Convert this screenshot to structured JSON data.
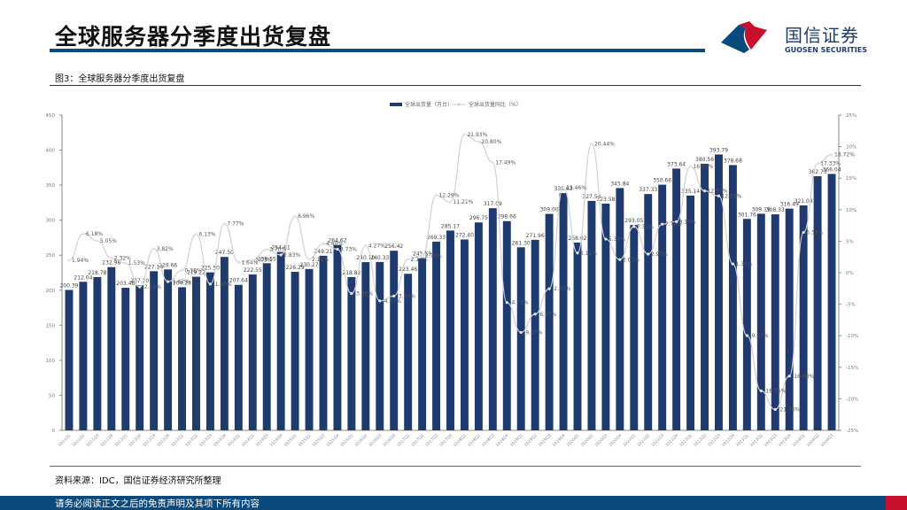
{
  "header": {
    "title": "全球服务器分季度出货复盘",
    "brand_cn": "国信证券",
    "brand_en": "GUOSEN SECURITIES"
  },
  "figure": {
    "caption": "图3：全球服务器分季度出货复盘",
    "source": "资料来源：IDC，国信证券经济研究所整理"
  },
  "footer": {
    "disclaimer": "请务必阅读正文之后的免责声明及其项下所有内容"
  },
  "colors": {
    "bar": "#1f3a6e",
    "line": "#d0d0d0",
    "brand_blue": "#0b4a7d",
    "brand_red": "#c8102e"
  },
  "chart_data": {
    "type": "bar+line",
    "title": "",
    "legend": [
      "全球出货量（万台）",
      "全球出货量同比（%）"
    ],
    "legend_position": "top",
    "grid": false,
    "y_left": {
      "label": "",
      "ticks": [
        0,
        50,
        100,
        150,
        200,
        250,
        300,
        350,
        400,
        450
      ],
      "range": [
        0,
        450
      ]
    },
    "y_right": {
      "label": "",
      "ticks": [
        "-25%",
        "-20%",
        "-15%",
        "-10%",
        "-5%",
        "0%",
        "5%",
        "10%",
        "15%",
        "20%",
        "25%"
      ],
      "range": [
        -25,
        25
      ]
    },
    "categories": [
      "2011Q1",
      "2011Q2",
      "2011Q3",
      "2011Q4",
      "2012Q1",
      "2012Q2",
      "2012Q3",
      "2012Q4",
      "2013Q1",
      "2013Q2",
      "2013Q3",
      "2013Q4",
      "2014Q1",
      "2014Q2",
      "2014Q3",
      "2014Q4",
      "2015Q1",
      "2015Q2",
      "2015Q3",
      "2015Q4",
      "2016Q1",
      "2016Q2",
      "2016Q3",
      "2016Q4",
      "2017Q1",
      "2017Q2",
      "2017Q3",
      "2017Q4",
      "2018Q1",
      "2018Q2",
      "2018Q3",
      "2018Q4",
      "2019Q1",
      "2019Q2",
      "2019Q3",
      "2019Q4",
      "2020Q1",
      "2020Q2",
      "2020Q3",
      "2020Q4",
      "2021Q1",
      "2021Q2",
      "2021Q3",
      "2021Q4",
      "2022Q1",
      "2022Q2",
      "2022Q3",
      "2022Q4",
      "2023Q1",
      "2023Q2",
      "2023Q3",
      "2023Q4",
      "2024Q1",
      "2024Q2",
      "2024Q3"
    ],
    "series": [
      {
        "name": "全球出货量（万台）",
        "type": "bar",
        "axis": "left",
        "values": [
          200.39,
          212.04,
          218.78,
          232.98,
          203.48,
          207.2,
          227.14,
          229.66,
          204.28,
          219.22,
          225.5,
          247.5,
          207.64,
          222.55,
          238.55,
          254.61,
          226.29,
          230.27,
          249.21,
          264.62,
          218.82,
          240.1,
          240.33,
          256.42,
          223.46,
          245.59,
          269.33,
          285.17,
          272.4,
          296.75,
          317.09,
          298.66,
          261.3,
          271.96,
          309.0,
          338.63,
          268.02,
          327.54,
          323.58,
          345.84,
          293.05,
          337.33,
          350.66,
          373.64,
          335.14,
          380.56,
          393.79,
          378.68,
          301.76,
          309.19,
          308.33,
          316.49,
          321.04,
          362.73,
          366.04
        ],
        "labels": [
          "200.39",
          "212.04",
          "218.78",
          "232.98",
          "203.48",
          "207.20",
          "227.14",
          "229.66",
          "204.28",
          "219.22",
          "225.50",
          "247.50",
          "207.64",
          "222.55",
          "238.55",
          "254.61",
          "226.29",
          "230.27",
          "249.21",
          "264.62",
          "218.82",
          "240.10",
          "240.33",
          "256.42",
          "223.46",
          "245.59",
          "269.33",
          "285.17",
          "272.40",
          "296.75",
          "317.09",
          "298.66",
          "261.30",
          "271.96",
          "309.00",
          "338.63",
          "268.02",
          "327.54",
          "323.58",
          "345.84",
          "293.05",
          "337.33",
          "350.66",
          "373.64",
          "335.14",
          "380.56",
          "393.79",
          "378.68",
          "301.76",
          "309.19",
          "308.33",
          "316.49",
          "321.04",
          "362.73",
          "366.04"
        ]
      },
      {
        "name": "全球出货量同比（%）",
        "type": "line",
        "axis": "right",
        "values": [
          1.94,
          6.18,
          5.05,
          2.32,
          1.53,
          -2.25,
          3.82,
          -1.42,
          0.38,
          6.13,
          -1.8,
          7.77,
          1.64,
          2.03,
          3.7,
          2.83,
          8.96,
          2.11,
          4.6,
          3.73,
          -3.3,
          4.27,
          -4.47,
          -3.7,
          2.14,
          2.7,
          12.29,
          11.21,
          21.93,
          20.8,
          17.49,
          -4.73,
          -9.47,
          -6.57,
          -2.55,
          13.46,
          3.12,
          20.44,
          5.33,
          2.07,
          7.32,
          2.95,
          7.7,
          8.1,
          16.87,
          12.97,
          12.18,
          1.39,
          -9.97,
          -18.75,
          -21.7,
          -16.4,
          6.39,
          17.33,
          18.72
        ],
        "labels": [
          "1.94%",
          "6.18%",
          "5.05%",
          "2.32%",
          "1.53%",
          "-2.25%",
          "3.82%",
          "-1.42%",
          "0.38%",
          "6.13%",
          "-1.80%",
          "7.77%",
          "1.64%",
          "2.03%",
          "3.70%",
          "2.83%",
          "8.96%",
          "2.11%",
          "4.60%",
          "3.73%",
          "-3.30%",
          "4.27%",
          "-4.47%",
          "-3.70%",
          "2.14%",
          "2.70%",
          "12.29%",
          "11.21%",
          "21.93%",
          "20.80%",
          "17.49%",
          "-4.73%",
          "-9.47%",
          "-6.57%",
          "-2.55%",
          "13.46%",
          "3.12%",
          "20.44%",
          "5.33%",
          "2.07%",
          "7.32%",
          "2.95%",
          "7.70%",
          "8.10%",
          "16.87%",
          "12.97%",
          "12.18%",
          "1.39%",
          "-9.97%",
          "-18.75%",
          "-21.70%",
          "-16.40%",
          "6.39%",
          "17.33%",
          "18.72%"
        ]
      }
    ]
  }
}
